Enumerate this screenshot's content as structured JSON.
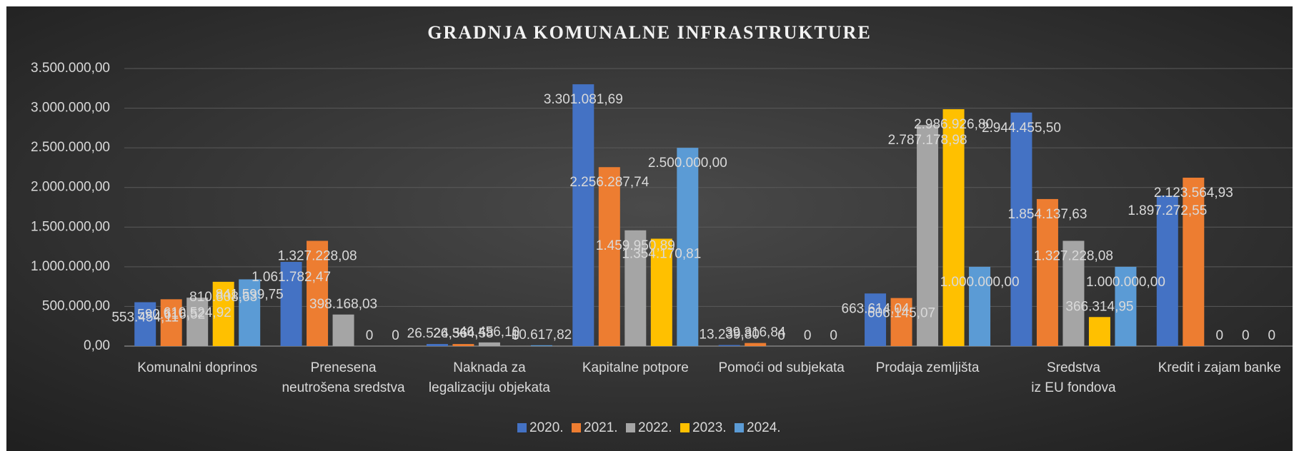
{
  "chart_data": {
    "type": "bar",
    "title": "GRADNJA KOMUNALNE INFRASTRUKTURE",
    "categories": [
      "Komunalni doprinos",
      "Prenesena neutrošena sredstva",
      "Naknada za legalizaciju objekata",
      "Kapitalne potpore",
      "Pomoći od subjekata",
      "Prodaja zemljišta",
      "Sredstva iz EU fondova",
      "Kredit i zajam banke"
    ],
    "series": [
      {
        "name": "2020.",
        "color": "#4472c4",
        "values": [
          553454.11,
          1061782.47,
          26524.56,
          3301081.69,
          13239.8,
          663614.04,
          2944455.5,
          1897272.55
        ],
        "value_labels": [
          "553.454,11",
          "1.061.782,47",
          "26.524,56",
          "3.301.081,69",
          "13.239,80",
          "663.614,04",
          "2.944.455,50",
          "1.897.272,55"
        ]
      },
      {
        "name": "2021.",
        "color": "#ed7d31",
        "values": [
          590616.52,
          1327228.08,
          26364.58,
          2256287.74,
          39316.84,
          606145.07,
          1854137.63,
          2123564.93
        ],
        "value_labels": [
          "590.616,52",
          "1.327.228,08",
          "26.364,58",
          "2.256.287,74",
          "39.316,84",
          "606.145,07",
          "1.854.137,63",
          "2.123.564,93"
        ]
      },
      {
        "name": "2022.",
        "color": "#a5a5a5",
        "values": [
          610524.92,
          398168.03,
          46456.1,
          1459950.89,
          0,
          2787178.98,
          1327228.08,
          0
        ],
        "value_labels": [
          "610.524,92",
          "398.168,03",
          "46.456,10",
          "1.459.950,89",
          "0",
          "2.787.178,98",
          "1.327.228,08",
          "0"
        ]
      },
      {
        "name": "2023.",
        "color": "#ffc000",
        "values": [
          810808.63,
          0,
          0,
          1354170.81,
          0,
          2986926.8,
          366314.95,
          0
        ],
        "value_labels": [
          "810.808,63",
          "0",
          "0",
          "1.354.170,81",
          "0",
          "2.986.926,80",
          "366.314,95",
          "0"
        ]
      },
      {
        "name": "2024.",
        "color": "#5b9bd5",
        "values": [
          841599.75,
          0,
          10617.82,
          2500000.0,
          0,
          1000000.0,
          1000000.0,
          0
        ],
        "value_labels": [
          "841.599,75",
          "0",
          "10.617,82",
          "2.500.000,00",
          "0",
          "1.000.000,00",
          "1.000.000,00",
          "0"
        ]
      }
    ],
    "ylim": [
      0,
      3500000
    ],
    "yticks": [
      {
        "value": 0,
        "label": "0,00"
      },
      {
        "value": 500000,
        "label": "500.000,00"
      },
      {
        "value": 1000000,
        "label": "1.000.000,00"
      },
      {
        "value": 1500000,
        "label": "1.500.000,00"
      },
      {
        "value": 2000000,
        "label": "2.000.000,00"
      },
      {
        "value": 2500000,
        "label": "2.500.000,00"
      },
      {
        "value": 3000000,
        "label": "3.000.000,00"
      },
      {
        "value": 3500000,
        "label": "3.500.000,00"
      }
    ],
    "grid": true,
    "legend": "bottom"
  }
}
